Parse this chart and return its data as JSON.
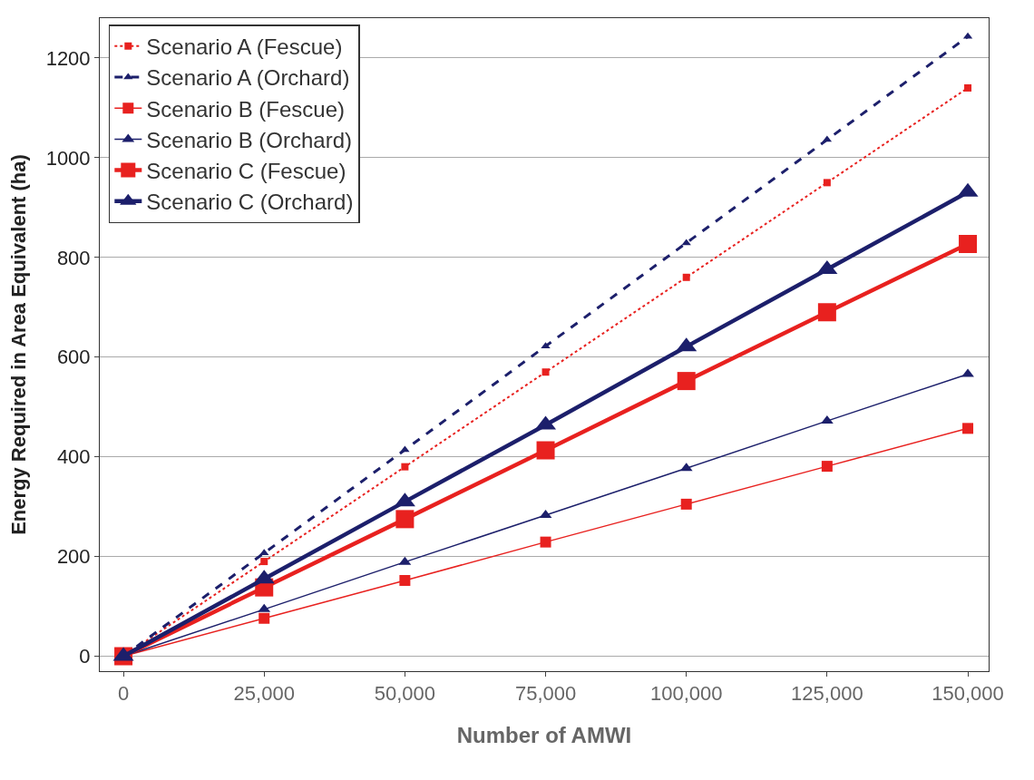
{
  "chart_data": {
    "type": "line",
    "xlabel": "Number of AMWI",
    "ylabel": "Energy Required in Area Equivalent (ha)",
    "x": [
      0,
      25000,
      50000,
      75000,
      100000,
      125000,
      150000
    ],
    "xlim": [
      -4200,
      153700
    ],
    "xticks": [
      {
        "value": 0,
        "label": "0"
      },
      {
        "value": 25000,
        "label": "25,000"
      },
      {
        "value": 50000,
        "label": "50,000"
      },
      {
        "value": 75000,
        "label": "75,000"
      },
      {
        "value": 100000,
        "label": "100,000"
      },
      {
        "value": 125000,
        "label": "125,000"
      },
      {
        "value": 150000,
        "label": "150,000"
      }
    ],
    "ylim": [
      -30,
      1280
    ],
    "yticks": [
      0,
      200,
      400,
      600,
      800,
      1000,
      1200
    ],
    "grid": "y",
    "legend": "top left",
    "series": [
      {
        "name": "Scenario A (Fescue)",
        "color": "#e8211f",
        "marker": "square",
        "line_style": "dotted",
        "values": [
          0,
          190,
          380,
          570,
          760,
          950,
          1140
        ]
      },
      {
        "name": "Scenario A (Orchard)",
        "color": "#1c1f6b",
        "marker": "triangle",
        "line_style": "dashed",
        "values": [
          0,
          207,
          414,
          622,
          829,
          1036,
          1243
        ]
      },
      {
        "name": "Scenario B (Fescue)",
        "color": "#e8211f",
        "marker": "square",
        "line_style": "solid",
        "values": [
          0,
          76,
          152,
          229,
          305,
          381,
          457
        ]
      },
      {
        "name": "Scenario B (Orchard)",
        "color": "#1c1f6b",
        "marker": "triangle",
        "line_style": "solid",
        "values": [
          0,
          94,
          189,
          283,
          377,
          472,
          566
        ]
      },
      {
        "name": "Scenario C (Fescue)",
        "color": "#e8211f",
        "marker": "square",
        "line_style": "solid",
        "values": [
          0,
          138,
          275,
          413,
          552,
          690,
          827
        ]
      },
      {
        "name": "Scenario C (Orchard)",
        "color": "#1c1f6b",
        "marker": "triangle",
        "line_style": "solid",
        "values": [
          0,
          155,
          310,
          464,
          621,
          776,
          931
        ]
      }
    ]
  }
}
